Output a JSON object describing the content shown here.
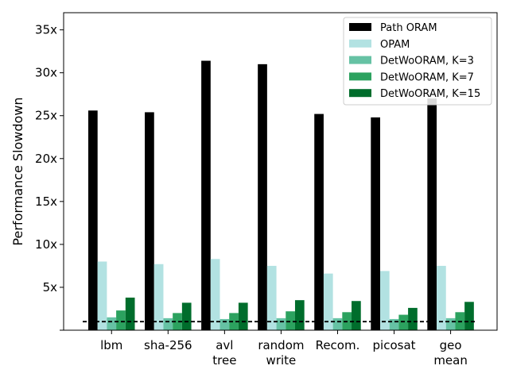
{
  "chart_data": {
    "type": "bar",
    "title": "",
    "xlabel": "",
    "ylabel": "Performance Slowdown",
    "ylim": [
      0,
      37
    ],
    "yticks": [
      5,
      10,
      15,
      20,
      25,
      30,
      35
    ],
    "ytick_labels": [
      "5x",
      "10x",
      "15x",
      "20x",
      "25x",
      "30x",
      "35x"
    ],
    "grid": false,
    "legend_position": "top-right",
    "categories": [
      [
        "lbm"
      ],
      [
        "sha-256"
      ],
      [
        "avl",
        "tree"
      ],
      [
        "random",
        "write"
      ],
      [
        "Recom."
      ],
      [
        "picosat"
      ],
      [
        "geo",
        "mean"
      ]
    ],
    "series": [
      {
        "name": "Path ORAM",
        "color": "#000000",
        "values": [
          25.6,
          25.4,
          31.4,
          31.0,
          25.2,
          24.8,
          27.0
        ]
      },
      {
        "name": "OPAM",
        "color": "#b2e2e2",
        "values": [
          8.0,
          7.7,
          8.3,
          7.5,
          6.6,
          6.9,
          7.5
        ]
      },
      {
        "name": "DetWoORAM, K=3",
        "color": "#66c2a4",
        "values": [
          1.5,
          1.4,
          1.3,
          1.4,
          1.4,
          1.3,
          1.4
        ]
      },
      {
        "name": "DetWoORAM, K=7",
        "color": "#2ca25f",
        "values": [
          2.3,
          2.0,
          2.0,
          2.2,
          2.1,
          1.8,
          2.1
        ]
      },
      {
        "name": "DetWoORAM, K=15",
        "color": "#006d2c",
        "values": [
          3.8,
          3.2,
          3.2,
          3.5,
          3.4,
          2.6,
          3.3
        ]
      }
    ],
    "baseline": {
      "value": 1.0,
      "style": "dashed",
      "color": "#000000"
    }
  }
}
